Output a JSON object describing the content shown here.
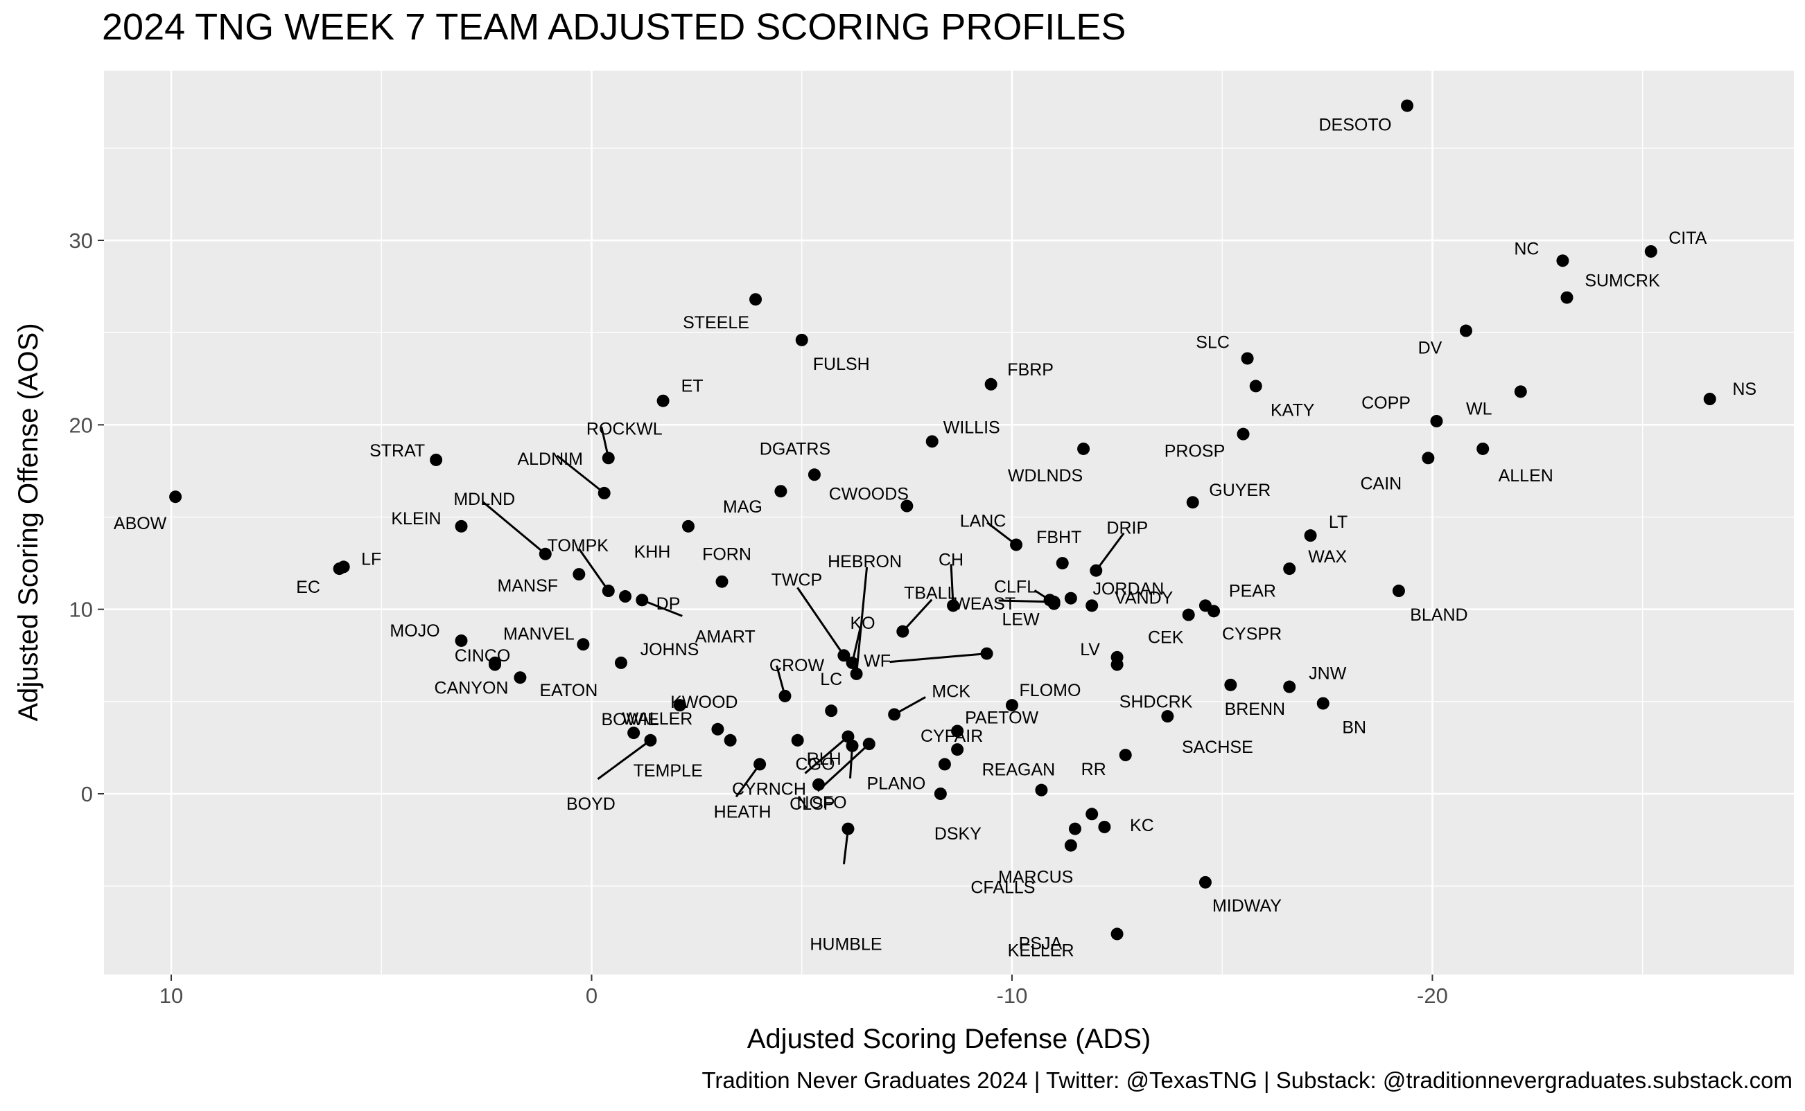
{
  "chart_data": {
    "type": "scatter",
    "title": "2024 TNG WEEK 7 TEAM ADJUSTED SCORING PROFILES",
    "xlabel": "Adjusted Scoring Defense (ADS)",
    "ylabel": "Adjusted Scoring Offense (AOS)",
    "caption": "Tradition Never Graduates 2024 | Twitter: @TexasTNG | Substack: @traditionnevergraduates.substack.com",
    "x_reversed": true,
    "xlim": [
      11.6,
      -28.6
    ],
    "ylim": [
      -9.8,
      39.2
    ],
    "xticks": [
      10,
      0,
      -10,
      -20
    ],
    "xtick_labels": [
      "10",
      "0",
      "-10",
      "-20"
    ],
    "yticks": [
      0,
      10,
      20,
      30
    ],
    "ytick_labels": [
      "0",
      "10",
      "20",
      "30"
    ],
    "grid": true,
    "point_color": "#000000",
    "panel_color": "#ebebeb",
    "points": [
      {
        "label": "DESOTO",
        "x": -19.4,
        "y": 37.3
      },
      {
        "label": "CITA",
        "x": -25.2,
        "y": 29.4
      },
      {
        "label": "NC",
        "x": -23.1,
        "y": 28.9
      },
      {
        "label": "SUMCRK",
        "x": -23.2,
        "y": 26.9
      },
      {
        "label": "DV",
        "x": -20.8,
        "y": 25.1
      },
      {
        "label": "NS",
        "x": -26.6,
        "y": 21.4
      },
      {
        "label": "WL",
        "x": -22.1,
        "y": 21.8
      },
      {
        "label": "COPP",
        "x": -20.1,
        "y": 20.2
      },
      {
        "label": "ALLEN",
        "x": -21.2,
        "y": 18.7
      },
      {
        "label": "CAIN",
        "x": -19.9,
        "y": 18.2
      },
      {
        "label": "SLC",
        "x": -15.6,
        "y": 23.6
      },
      {
        "label": "KATY",
        "x": -15.8,
        "y": 22.1
      },
      {
        "label": "PROSP",
        "x": -15.5,
        "y": 19.5
      },
      {
        "label": "GUYER",
        "x": -14.3,
        "y": 15.8
      },
      {
        "label": "LT",
        "x": -17.1,
        "y": 14.0
      },
      {
        "label": "WAX",
        "x": -16.6,
        "y": 12.2
      },
      {
        "label": "BLAND",
        "x": -19.2,
        "y": 11.0
      },
      {
        "label": "PEAR",
        "x": -14.6,
        "y": 10.2
      },
      {
        "label": "CYSPR",
        "x": -14.8,
        "y": 9.9
      },
      {
        "label": "CEK",
        "x": -14.2,
        "y": 9.7
      },
      {
        "label": "JNW",
        "x": -16.6,
        "y": 5.8
      },
      {
        "label": "BN",
        "x": -17.4,
        "y": 4.9
      },
      {
        "label": "BRENN",
        "x": -15.2,
        "y": 5.9
      },
      {
        "label": "STEELE",
        "x": -3.9,
        "y": 26.8
      },
      {
        "label": "FULSH",
        "x": -5.0,
        "y": 24.6
      },
      {
        "label": "FBRP",
        "x": -9.5,
        "y": 22.2
      },
      {
        "label": "ET",
        "x": -1.7,
        "y": 21.3
      },
      {
        "label": "WILLIS",
        "x": -8.1,
        "y": 19.1
      },
      {
        "label": "WDLNDS",
        "x": -11.7,
        "y": 18.7
      },
      {
        "label": "ROCKWL",
        "x": -0.4,
        "y": 18.2
      },
      {
        "label": "STRAT",
        "x": 3.7,
        "y": 18.1
      },
      {
        "label": "DGATRS",
        "x": -5.3,
        "y": 17.3
      },
      {
        "label": "ALDNIM",
        "x": -0.3,
        "y": 16.3
      },
      {
        "label": "ABOW",
        "x": 9.9,
        "y": 16.1
      },
      {
        "label": "MAG",
        "x": -4.5,
        "y": 16.4
      },
      {
        "label": "CWOODS",
        "x": -7.5,
        "y": 15.6
      },
      {
        "label": "KLEIN",
        "x": 3.1,
        "y": 14.5
      },
      {
        "label": "KHH",
        "x": -2.3,
        "y": 14.5
      },
      {
        "label": "LANC",
        "x": -10.1,
        "y": 13.5
      },
      {
        "label": "MDLND",
        "x": 1.1,
        "y": 13.0
      },
      {
        "label": "FBHT",
        "x": -11.2,
        "y": 12.5
      },
      {
        "label": "DRIP",
        "x": -12.0,
        "y": 12.1
      },
      {
        "label": "LF",
        "x": 5.9,
        "y": 12.3
      },
      {
        "label": "EC",
        "x": 6.0,
        "y": 12.2
      },
      {
        "label": "MANSF",
        "x": 0.3,
        "y": 11.9
      },
      {
        "label": "FORN",
        "x": -3.1,
        "y": 11.5
      },
      {
        "label": "TOMPK",
        "x": -0.4,
        "y": 11.0
      },
      {
        "label": "DP",
        "x": -0.8,
        "y": 10.7
      },
      {
        "label": "AMART",
        "x": -1.2,
        "y": 10.5
      },
      {
        "label": "JORDAN",
        "x": -11.4,
        "y": 10.6
      },
      {
        "label": "CLFL",
        "x": -10.9,
        "y": 10.5
      },
      {
        "label": "LEW",
        "x": -11.0,
        "y": 10.3
      },
      {
        "label": "VANDY",
        "x": -11.9,
        "y": 10.2
      },
      {
        "label": "CH",
        "x": -8.6,
        "y": 10.2
      },
      {
        "label": "TBALL",
        "x": -7.4,
        "y": 8.8
      },
      {
        "label": "HEBRON",
        "x": -6.3,
        "y": 6.5
      },
      {
        "label": "TWCP",
        "x": -6.0,
        "y": 7.5
      },
      {
        "label": "KO",
        "x": -6.2,
        "y": 7.1
      },
      {
        "label": "WEAST",
        "x": -11.0,
        "y": 10.4
      },
      {
        "label": "WF",
        "x": -9.4,
        "y": 7.6
      },
      {
        "label": "MOJO",
        "x": 3.1,
        "y": 8.3
      },
      {
        "label": "MANVEL",
        "x": 0.2,
        "y": 8.1
      },
      {
        "label": "JOHNS",
        "x": -0.7,
        "y": 7.1
      },
      {
        "label": "CINCO",
        "x": 2.3,
        "y": 7.1
      },
      {
        "label": "EATON",
        "x": 1.7,
        "y": 6.3
      },
      {
        "label": "CANYON",
        "x": 2.3,
        "y": 7.0
      },
      {
        "label": "LV",
        "x": -12.5,
        "y": 7.4
      },
      {
        "label": "SHDCRK",
        "x": -12.5,
        "y": 7.0
      },
      {
        "label": "CROW",
        "x": -4.6,
        "y": 5.3
      },
      {
        "label": "KWOOD",
        "x": -2.1,
        "y": 4.8
      },
      {
        "label": "LC",
        "x": -5.7,
        "y": 4.5
      },
      {
        "label": "FLOMO",
        "x": -10.0,
        "y": 4.8
      },
      {
        "label": "MCK",
        "x": -7.2,
        "y": 4.3
      },
      {
        "label": "SACHSE",
        "x": -13.7,
        "y": 4.2
      },
      {
        "label": "PAETOW",
        "x": -8.7,
        "y": 3.4
      },
      {
        "label": "CYFAIR",
        "x": -8.7,
        "y": 2.4
      },
      {
        "label": "RLH",
        "x": -4.9,
        "y": 2.9
      },
      {
        "label": "BOWIE",
        "x": -1.0,
        "y": 3.3
      },
      {
        "label": "TEMPLE",
        "x": -3.3,
        "y": 2.9
      },
      {
        "label": "BOYD",
        "x": -1.4,
        "y": 2.9
      },
      {
        "label": "WALLER",
        "x": -3.0,
        "y": 3.5
      },
      {
        "label": "RR",
        "x": -12.7,
        "y": 2.1
      },
      {
        "label": "HEATH",
        "x": -4.0,
        "y": 1.6
      },
      {
        "label": "PLANO",
        "x": -8.4,
        "y": 1.6
      },
      {
        "label": "REAGAN",
        "x": -10.7,
        "y": 0.2
      },
      {
        "label": "CGO",
        "x": -5.4,
        "y": 0.5
      },
      {
        "label": "CLSP",
        "x": -6.6,
        "y": 2.7
      },
      {
        "label": "DSKY",
        "x": -8.3,
        "y": 0.0
      },
      {
        "label": "MARCUS",
        "x": -11.9,
        "y": -1.1
      },
      {
        "label": "CYRNCH",
        "x": -6.1,
        "y": 3.1
      },
      {
        "label": "NOFO",
        "x": -6.2,
        "y": 2.6
      },
      {
        "label": "CFALLS",
        "x": -11.5,
        "y": -1.9
      },
      {
        "label": "KC",
        "x": -12.2,
        "y": -1.8
      },
      {
        "label": "HUMBLE",
        "x": -6.1,
        "y": -1.9
      },
      {
        "label": "PSJA",
        "x": -11.4,
        "y": -2.8
      },
      {
        "label": "MIDWAY",
        "x": -14.6,
        "y": -4.8
      },
      {
        "label": "KELLER",
        "x": -12.5,
        "y": -7.6
      }
    ]
  }
}
